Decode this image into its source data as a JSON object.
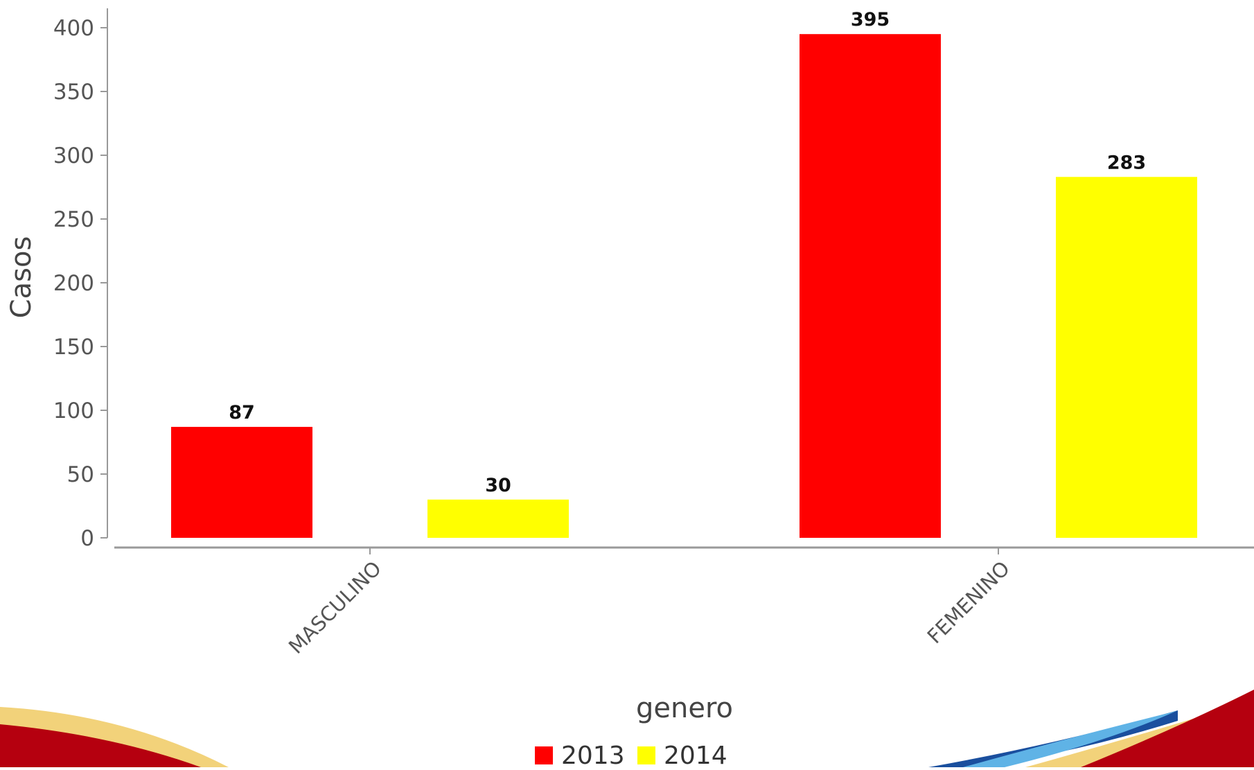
{
  "chart_data": {
    "type": "bar",
    "categories": [
      "MASCULINO",
      "FEMENINO"
    ],
    "series": [
      {
        "name": "2013",
        "color": "#ff0000",
        "values": [
          87,
          395
        ]
      },
      {
        "name": "2014",
        "color": "#ffff00",
        "values": [
          30,
          283
        ]
      }
    ],
    "xlabel": "genero",
    "ylabel": "Casos",
    "ylim": [
      0,
      400
    ],
    "yticks": [
      0,
      50,
      100,
      150,
      200,
      250,
      300,
      350,
      400
    ],
    "grid": false,
    "legend_position": "bottom-center",
    "data_labels": true
  },
  "decoration": {
    "swoosh_colors": [
      "#b5000f",
      "#f2d27a",
      "#1a4f9e",
      "#5fb3e6"
    ]
  }
}
